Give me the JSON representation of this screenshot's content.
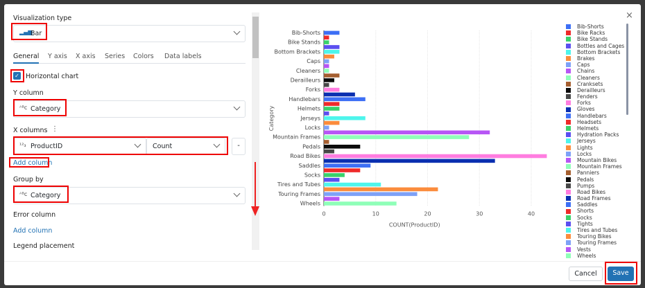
{
  "panel": {
    "viz_type_label": "Visualization type",
    "viz_type_value": "Bar",
    "tabs": [
      "General",
      "Y axis",
      "X axis",
      "Series",
      "Colors",
      "Data labels"
    ],
    "active_tab": "General",
    "horizontal_chart_label": "Horizontal chart",
    "horizontal_chart_checked": true,
    "y_column_label": "Y column",
    "y_column_value": "Category",
    "x_columns_label": "X columns",
    "x_column_value": "ProductID",
    "x_agg_value": "Count",
    "remove_label": "-",
    "add_column_label": "Add column",
    "group_by_label": "Group by",
    "group_by_value": "Category",
    "error_column_label": "Error column",
    "error_add_column_label": "Add column",
    "legend_placement_label": "Legend placement"
  },
  "footer": {
    "cancel_label": "Cancel",
    "save_label": "Save",
    "save_color": "#2272b4"
  },
  "chart_data": {
    "type": "bar",
    "orientation": "horizontal",
    "xlabel": "COUNT(ProductID)",
    "ylabel": "Category",
    "xlim": [
      0,
      43
    ],
    "xticks": [
      0,
      10,
      20,
      30,
      40
    ],
    "grid": true,
    "legend_placement": "right",
    "categories": [
      "Bib-Shorts",
      "Bike Racks",
      "Bike Stands",
      "Bottles and Cages",
      "Bottom Brackets",
      "Brakes",
      "Caps",
      "Chains",
      "Cleaners",
      "Cranksets",
      "Derailleurs",
      "Fenders",
      "Forks",
      "Gloves",
      "Handlebars",
      "Headsets",
      "Helmets",
      "Hydration Packs",
      "Jerseys",
      "Lights",
      "Locks",
      "Mountain Bikes",
      "Mountain Frames",
      "Panniers",
      "Pedals",
      "Pumps",
      "Road Bikes",
      "Road Frames",
      "Saddles",
      "Shorts",
      "Socks",
      "Tights",
      "Tires and Tubes",
      "Touring Bikes",
      "Touring Frames",
      "Vests",
      "Wheels"
    ],
    "values": [
      3,
      1,
      1,
      3,
      3,
      2,
      1,
      1,
      1,
      3,
      2,
      1,
      3,
      6,
      8,
      3,
      3,
      1,
      8,
      3,
      1,
      32,
      28,
      1,
      7,
      2,
      43,
      33,
      9,
      7,
      4,
      3,
      11,
      22,
      18,
      3,
      14
    ],
    "visible_category_labels": [
      "Bib-Shorts",
      "Bike Stands",
      "Bottom Brackets",
      "Caps",
      "Cleaners",
      "Derailleurs",
      "Forks",
      "Handlebars",
      "Helmets",
      "Jerseys",
      "Locks",
      "Mountain Frames",
      "Pedals",
      "Road Bikes",
      "Saddles",
      "Socks",
      "Tires and Tubes",
      "Touring Frames",
      "Wheels"
    ],
    "palette": [
      "#3d6ff5",
      "#ef2a2a",
      "#3ad16b",
      "#5b4ff0",
      "#4ef5ec",
      "#fb8c3c",
      "#7ea1f7",
      "#b755f5",
      "#8fffb8",
      "#a55f30",
      "#0b0b0b",
      "#474747",
      "#ff7de0",
      "#0a2fb0"
    ]
  }
}
